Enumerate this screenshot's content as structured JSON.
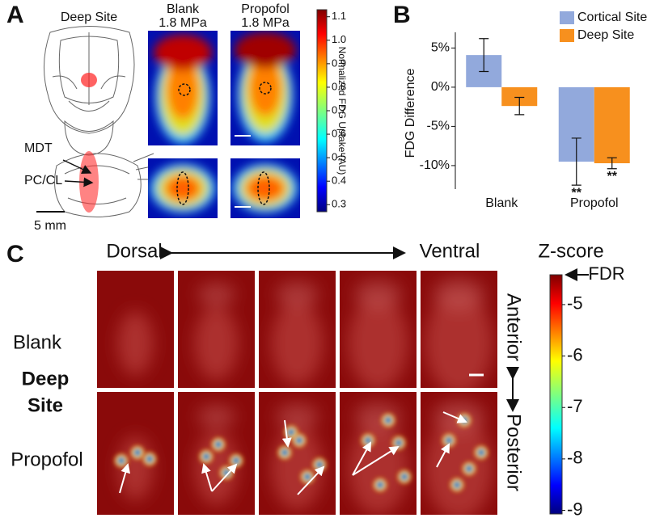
{
  "panel_a": {
    "label": "A",
    "deep_site": "Deep Site",
    "mdt": "MDT",
    "pc_cl": "PC/CL",
    "scale_bar": "5 mm",
    "columns": [
      {
        "name": "Blank",
        "pressure": "1.8 MPa"
      },
      {
        "name": "Propofol",
        "pressure": "1.8 MPa"
      }
    ],
    "colorbar": {
      "label": "Normalized FDG Uptake (AU)",
      "lim": [
        0.27,
        1.13
      ],
      "ticks": [
        0.3,
        0.4,
        0.5,
        0.6,
        0.7,
        0.8,
        0.9,
        {
          "value": 1,
          "label": "1.0"
        },
        1.1
      ]
    }
  },
  "panel_b": {
    "label": "B"
  },
  "chart_data": {
    "type": "bar",
    "ylabel": "FDG Difference",
    "categories": [
      "Blank",
      "Propofol"
    ],
    "series": [
      {
        "name": "Cortical Site",
        "color": "#92a9dc",
        "values": [
          4.1,
          -9.5
        ],
        "errors": [
          2.1,
          3
        ],
        "annotations": [
          null,
          "**"
        ]
      },
      {
        "name": "Deep Site",
        "color": "#f7901e",
        "values": [
          -2.4,
          -9.7
        ],
        "errors": [
          1.1,
          0.7
        ],
        "annotations": [
          null,
          "**"
        ]
      }
    ],
    "ylim": [
      -13,
      7
    ],
    "yticks": [
      {
        "value": 5,
        "label": "5%"
      },
      {
        "value": 0,
        "label": "0%"
      },
      {
        "value": -5,
        "label": "-5%"
      },
      {
        "value": -10,
        "label": "-10%"
      }
    ],
    "legend": "top-right"
  },
  "panel_c": {
    "label": "C",
    "dorsal": "Dorsal",
    "ventral": "Ventral",
    "rows": [
      "Blank",
      "Propofol"
    ],
    "group": [
      "Deep",
      "Site"
    ],
    "anterior": "Anterior",
    "posterior": "Posterior",
    "colorbar": {
      "label": "Z-score",
      "marker": "FDR",
      "lim": [
        -9.07,
        -4.42
      ],
      "ticks": [
        -5,
        -6,
        -7,
        -8,
        -9
      ]
    }
  }
}
